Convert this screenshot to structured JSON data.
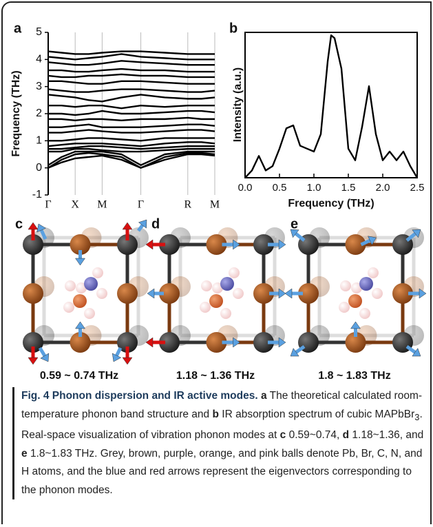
{
  "chart_data": [
    {
      "type": "line",
      "label": "a",
      "ylabel": "Frequency (THz)",
      "color": "#000000",
      "grid": true,
      "x": [
        0,
        0.08,
        0.162,
        0.243,
        0.324,
        0.44,
        0.556,
        0.7,
        0.838,
        0.92,
        1.0
      ],
      "xlim": [
        0,
        1
      ],
      "xticks": [
        {
          "value": 0,
          "label": "Γ"
        },
        {
          "value": 0.162,
          "label": "X"
        },
        {
          "value": 0.324,
          "label": "M"
        },
        {
          "value": 0.556,
          "label": "Γ"
        },
        {
          "value": 0.838,
          "label": "R"
        },
        {
          "value": 1.0,
          "label": "M"
        }
      ],
      "ylim": [
        -1,
        5
      ],
      "yticks": [
        -1,
        0,
        1,
        2,
        3,
        4,
        5
      ],
      "series": [
        {
          "values": [
            0,
            0.2,
            0.35,
            0.4,
            0.45,
            0.3,
            0,
            0.3,
            0.5,
            0.5,
            0.45
          ]
        },
        {
          "values": [
            0,
            0.3,
            0.5,
            0.55,
            0.5,
            0.4,
            0,
            0.4,
            0.55,
            0.55,
            0.5
          ]
        },
        {
          "values": [
            0.1,
            0.4,
            0.6,
            0.6,
            0.6,
            0.5,
            0.1,
            0.5,
            0.6,
            0.6,
            0.6
          ]
        },
        {
          "values": [
            0.6,
            0.6,
            0.7,
            0.7,
            0.65,
            0.6,
            0.6,
            0.65,
            0.7,
            0.7,
            0.7
          ]
        },
        {
          "values": [
            0.7,
            0.7,
            0.75,
            0.8,
            0.8,
            0.75,
            0.7,
            0.75,
            0.8,
            0.8,
            0.8
          ]
        },
        {
          "values": [
            0.8,
            0.85,
            0.9,
            0.9,
            0.9,
            0.85,
            0.8,
            0.9,
            0.95,
            0.95,
            0.9
          ]
        },
        {
          "values": [
            1.0,
            1.0,
            1.05,
            1.1,
            1.1,
            1.05,
            1.0,
            1.1,
            1.1,
            1.1,
            1.1
          ]
        },
        {
          "values": [
            1.3,
            1.3,
            1.35,
            1.4,
            1.35,
            1.3,
            1.3,
            1.35,
            1.4,
            1.4,
            1.35
          ]
        },
        {
          "values": [
            1.5,
            1.5,
            1.55,
            1.6,
            1.5,
            1.5,
            1.5,
            1.55,
            1.6,
            1.6,
            1.55
          ]
        },
        {
          "values": [
            1.8,
            1.8,
            1.75,
            1.8,
            1.8,
            1.75,
            1.8,
            1.8,
            1.85,
            1.8,
            1.8
          ]
        },
        {
          "values": [
            2.0,
            2.0,
            1.95,
            2.0,
            2.1,
            2.0,
            2.0,
            2.05,
            2.1,
            2.1,
            2.05
          ]
        },
        {
          "values": [
            2.3,
            2.3,
            2.25,
            2.3,
            2.3,
            2.2,
            2.3,
            2.25,
            2.3,
            2.3,
            2.3
          ]
        },
        {
          "values": [
            2.7,
            2.65,
            2.6,
            2.5,
            2.45,
            2.6,
            2.7,
            2.6,
            2.55,
            2.55,
            2.6
          ]
        },
        {
          "values": [
            2.9,
            2.85,
            2.8,
            2.8,
            2.85,
            2.9,
            2.9,
            2.85,
            2.8,
            2.8,
            2.85
          ]
        },
        {
          "values": [
            3.2,
            3.2,
            3.15,
            3.1,
            3.1,
            3.2,
            3.2,
            3.15,
            3.1,
            3.1,
            3.1
          ]
        },
        {
          "values": [
            3.4,
            3.35,
            3.35,
            3.4,
            3.4,
            3.45,
            3.4,
            3.4,
            3.35,
            3.35,
            3.35
          ]
        },
        {
          "values": [
            3.6,
            3.6,
            3.55,
            3.55,
            3.6,
            3.65,
            3.6,
            3.6,
            3.55,
            3.55,
            3.55
          ]
        },
        {
          "values": [
            3.9,
            3.85,
            3.8,
            3.8,
            3.85,
            3.95,
            3.9,
            3.85,
            3.8,
            3.8,
            3.8
          ]
        },
        {
          "values": [
            4.1,
            4.05,
            4.0,
            4.05,
            4.1,
            4.2,
            4.1,
            4.05,
            4.0,
            4.0,
            4.0
          ]
        },
        {
          "values": [
            4.3,
            4.25,
            4.2,
            4.2,
            4.25,
            4.3,
            4.3,
            4.25,
            4.2,
            4.2,
            4.2
          ]
        }
      ]
    },
    {
      "type": "line",
      "label": "b",
      "xlabel": "Frequency (THz)",
      "ylabel": "Intensity (a.u.)",
      "color": "#000000",
      "grid": false,
      "x": [
        0,
        0.1,
        0.2,
        0.3,
        0.4,
        0.5,
        0.6,
        0.7,
        0.8,
        0.9,
        1.0,
        1.1,
        1.2,
        1.25,
        1.3,
        1.4,
        1.5,
        1.6,
        1.7,
        1.8,
        1.9,
        2.0,
        2.1,
        2.2,
        2.3,
        2.4,
        2.5
      ],
      "xlim": [
        0,
        2.5
      ],
      "xticks": [
        {
          "value": 0,
          "label": "0.0"
        },
        0.5,
        {
          "value": 1,
          "label": "1.0"
        },
        1.5,
        {
          "value": 2,
          "label": "2.0"
        },
        2.5
      ],
      "ylim": [
        0,
        1
      ],
      "series": [
        {
          "values": [
            0.0,
            0.05,
            0.15,
            0.05,
            0.08,
            0.2,
            0.34,
            0.36,
            0.22,
            0.2,
            0.18,
            0.3,
            0.8,
            0.98,
            0.96,
            0.75,
            0.2,
            0.12,
            0.35,
            0.63,
            0.3,
            0.12,
            0.18,
            0.12,
            0.18,
            0.08,
            0.0
          ]
        }
      ]
    }
  ],
  "mode_panels": [
    {
      "label": "c",
      "caption": "0.59 ~ 0.74 THz"
    },
    {
      "label": "d",
      "caption": "1.18 ~ 1.36 THz"
    },
    {
      "label": "e",
      "caption": "1.8 ~ 1.83 THz"
    }
  ],
  "caption": {
    "title": "Fig. 4 Phonon dispersion and IR active modes.",
    "parts": [
      "a",
      "The theoretical calculated room-temperature phonon band structure and",
      "b",
      "IR absorption spectrum of cubic MAPbBr",
      "3",
      ". Real-space visualization of vibration phonon modes at",
      "c",
      "0.59~0.74,",
      "d",
      "1.18~1.36, and",
      "e",
      "1.8~1.83 THz. Grey, brown, purple, orange, and pink balls denote Pb, Br, C, N, and H atoms, and the blue and red arrows represent the eigenvectors corresponding to the phonon modes."
    ]
  }
}
